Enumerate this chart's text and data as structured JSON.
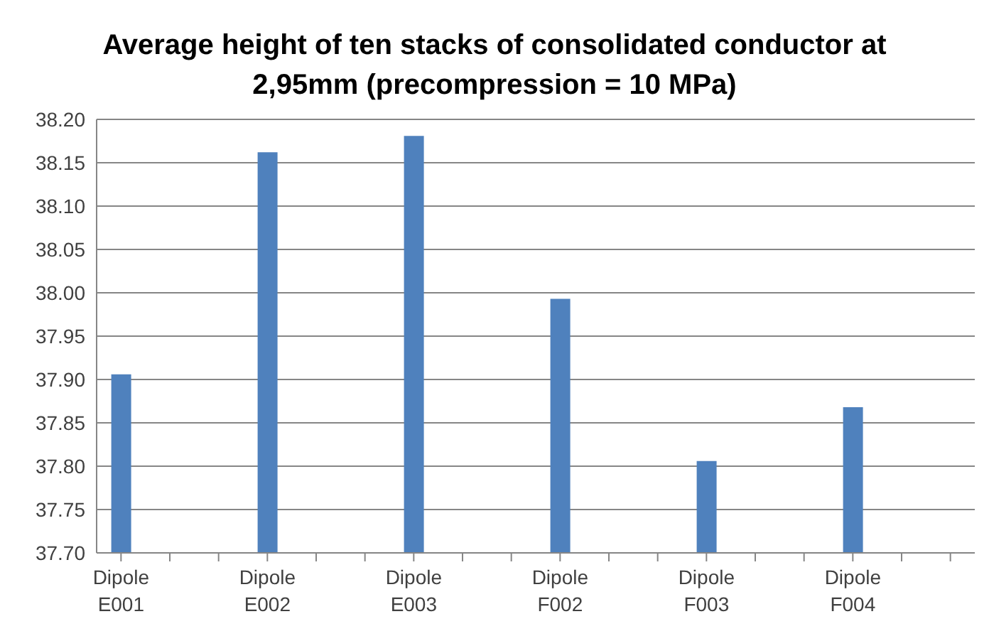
{
  "chart_data": {
    "type": "bar",
    "title": "Average height of ten stacks of consolidated conductor at 2,95mm (precompression = 10 MPa)",
    "categories": [
      "Dipole E001",
      null,
      null,
      "Dipole E002",
      null,
      null,
      "Dipole E003",
      null,
      null,
      "Dipole F002",
      null,
      null,
      "Dipole F003",
      null,
      null,
      "Dipole F004",
      null,
      null
    ],
    "values": [
      37.906,
      null,
      null,
      38.162,
      null,
      null,
      38.181,
      null,
      null,
      37.993,
      null,
      null,
      37.806,
      null,
      null,
      37.868,
      null,
      null
    ],
    "color": "#4f81bd",
    "ylim": [
      37.7,
      38.2
    ],
    "yticks": [
      {
        "value": 37.7,
        "label": "37.70"
      },
      {
        "value": 37.75,
        "label": "37.75"
      },
      {
        "value": 37.8,
        "label": "37.80"
      },
      {
        "value": 37.85,
        "label": "37.85"
      },
      {
        "value": 37.9,
        "label": "37.90"
      },
      {
        "value": 37.95,
        "label": "37.95"
      },
      {
        "value": 38.0,
        "label": "38.00"
      },
      {
        "value": 38.05,
        "label": "38.05"
      },
      {
        "value": 38.1,
        "label": "38.10"
      },
      {
        "value": 38.15,
        "label": "38.15"
      },
      {
        "value": 38.2,
        "label": "38.20"
      }
    ],
    "grid": "y",
    "legend": false
  }
}
